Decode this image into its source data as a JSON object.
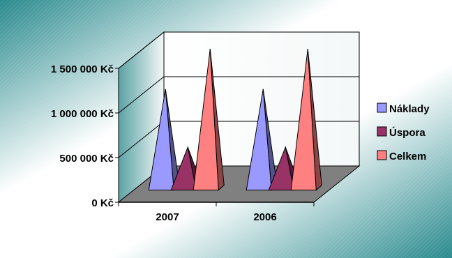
{
  "chart_data": {
    "type": "bar",
    "style": "3d-pyramid",
    "categories": [
      "2007",
      "2006"
    ],
    "series": [
      {
        "name": "Náklady",
        "values": [
          1100000,
          1100000
        ],
        "color": "#9999ff"
      },
      {
        "name": "Úspora",
        "values": [
          450000,
          450000
        ],
        "color": "#993366"
      },
      {
        "name": "Celkem",
        "values": [
          1550000,
          1550000
        ],
        "color": "#ff8080"
      }
    ],
    "y_ticks": [
      0,
      500000,
      1000000,
      1500000
    ],
    "y_tick_labels": [
      "0 Kč",
      "500 000 Kč",
      "1 000 000 Kč",
      "1 500 000 Kč"
    ],
    "ylim": [
      0,
      1500000
    ],
    "grid": true,
    "legend": "right",
    "colors": {
      "wall": "#ffffff",
      "floor": "#808080",
      "border": "#000000",
      "background_gradient": [
        "#2a8a8e",
        "#ffffff"
      ]
    }
  }
}
